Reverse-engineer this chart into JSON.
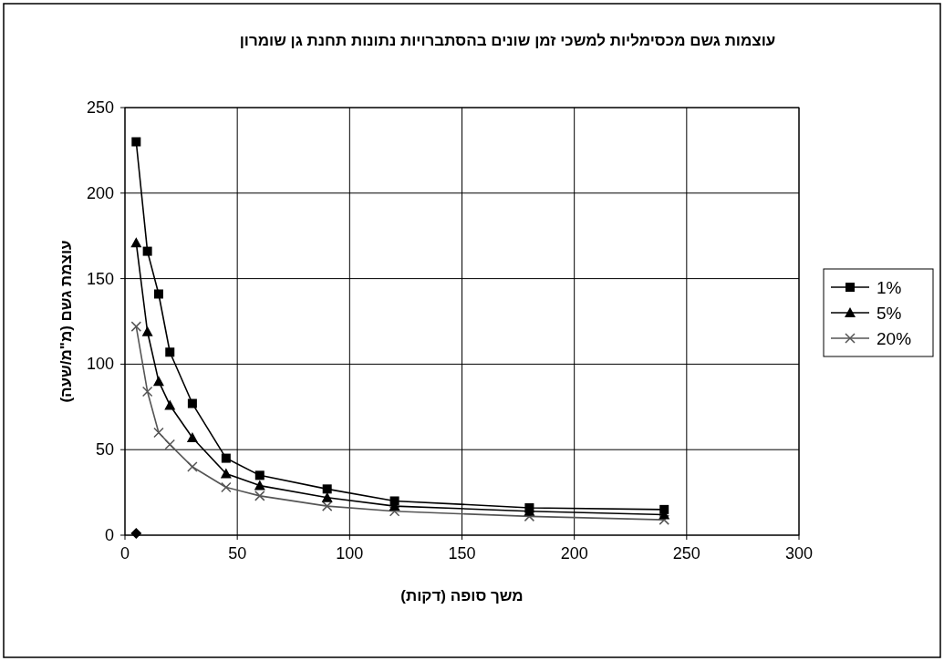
{
  "chart_data": {
    "type": "line",
    "title": "עוצמות גשם מכסימליות למשכי זמן שונים בהסתברויות נתונות תחנת גן שומרון",
    "xlabel": "משך סופה (דקות)",
    "ylabel": "עוצמת גשם (מ\"מ/שעה)",
    "x": [
      5,
      10,
      15,
      20,
      30,
      45,
      60,
      90,
      120,
      180,
      240
    ],
    "series": [
      {
        "name": "1%",
        "color": "#000000",
        "marker": "square",
        "values": [
          230,
          166,
          141,
          107,
          77,
          45,
          35,
          27,
          20,
          16,
          15
        ]
      },
      {
        "name": "5%",
        "color": "#000000",
        "marker": "triangle",
        "values": [
          171,
          119,
          90,
          76,
          57,
          36,
          29,
          22,
          17,
          14,
          12
        ]
      },
      {
        "name": "20%",
        "color": "#555555",
        "marker": "cross",
        "values": [
          122,
          84,
          60,
          53,
          40,
          28,
          23,
          17,
          14,
          11,
          9
        ]
      },
      {
        "type": "scatter",
        "color": "#000000",
        "marker": "diamond",
        "x": [
          5
        ],
        "values": [
          1
        ]
      }
    ],
    "xlim": [
      0,
      300
    ],
    "xticks": [
      0,
      50,
      100,
      150,
      200,
      250,
      300
    ],
    "ylim": [
      0,
      250
    ],
    "yticks": [
      0,
      50,
      100,
      150,
      200,
      250
    ],
    "grid": true,
    "legend": "right"
  }
}
